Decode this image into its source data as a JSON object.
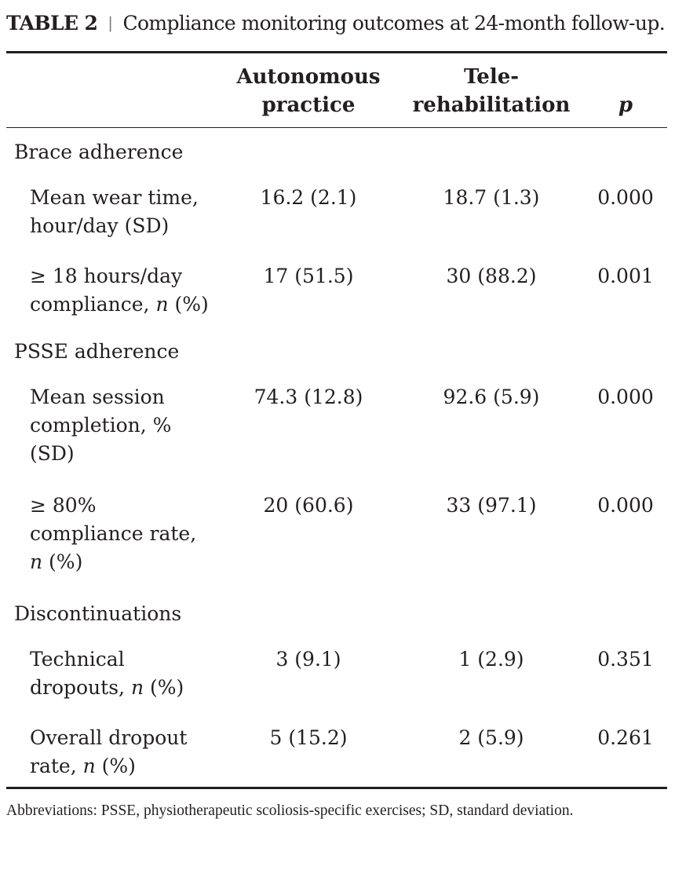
{
  "caption": {
    "label": "TABLE 2",
    "separator": "|",
    "text": "Compliance monitoring outcomes at 24-month follow-up."
  },
  "columns": {
    "col1": "Autonomous\npractice",
    "col2": "Tele-\nrehabilitation",
    "col3": "p"
  },
  "sections": [
    {
      "title": "Brace adherence",
      "rows": [
        {
          "label": "Mean wear time,\nhour/day (SD)",
          "autonomous": "16.2 (2.1)",
          "tele": "18.7 (1.3)",
          "p": "0.000"
        },
        {
          "label": "≥ 18 hours/day\ncompliance, n (%)",
          "autonomous": "17 (51.5)",
          "tele": "30 (88.2)",
          "p": "0.001"
        }
      ]
    },
    {
      "title": "PSSE adherence",
      "rows": [
        {
          "label": "Mean session\ncompletion, %\n(SD)",
          "autonomous": "74.3 (12.8)",
          "tele": "92.6 (5.9)",
          "p": "0.000"
        },
        {
          "label": "≥ 80%\ncompliance rate,\nn (%)",
          "autonomous": "20 (60.6)",
          "tele": "33 (97.1)",
          "p": "0.000"
        }
      ]
    },
    {
      "title": "Discontinuations",
      "rows": [
        {
          "label": "Technical\ndropouts, n (%)",
          "autonomous": "3 (9.1)",
          "tele": "1 (2.9)",
          "p": "0.351"
        },
        {
          "label": "Overall dropout\nrate, n (%)",
          "autonomous": "5 (15.2)",
          "tele": "2 (5.9)",
          "p": "0.261"
        }
      ]
    }
  ],
  "footnote": "Abbreviations: PSSE, physiotherapeutic scoliosis-specific exercises; SD, standard deviation."
}
